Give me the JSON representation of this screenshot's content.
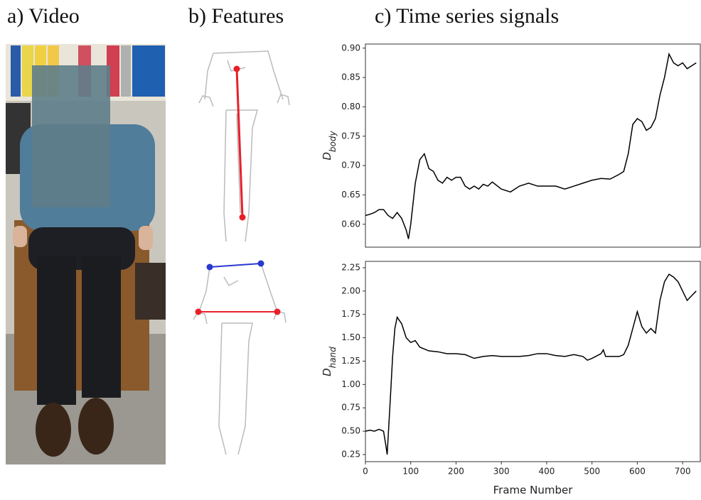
{
  "panels": {
    "a": "a) Video",
    "b": "b) Features",
    "c": "c) Time series signals"
  },
  "chart_data": [
    {
      "type": "line",
      "ylabel": "D",
      "ylabel_sub": "body",
      "color": "#000000",
      "xlim": [
        0,
        739
      ],
      "ylim": [
        0.561,
        0.907
      ],
      "yticks": [
        {
          "value": 0.6,
          "label": "0.60"
        },
        0.65,
        {
          "value": 0.7,
          "label": "0.70"
        },
        0.75,
        {
          "value": 0.8,
          "label": "0.80"
        },
        0.85,
        {
          "value": 0.9,
          "label": "0.90"
        }
      ],
      "x": [
        0,
        10,
        20,
        30,
        40,
        50,
        60,
        70,
        80,
        90,
        95,
        100,
        110,
        120,
        130,
        140,
        150,
        160,
        170,
        180,
        190,
        200,
        210,
        220,
        230,
        240,
        250,
        260,
        270,
        280,
        300,
        320,
        340,
        360,
        380,
        400,
        420,
        440,
        460,
        480,
        500,
        520,
        540,
        560,
        570,
        580,
        590,
        600,
        610,
        620,
        630,
        640,
        650,
        660,
        670,
        680,
        690,
        700,
        710,
        720,
        730
      ],
      "values": [
        0.615,
        0.617,
        0.62,
        0.625,
        0.625,
        0.615,
        0.61,
        0.62,
        0.61,
        0.59,
        0.575,
        0.6,
        0.67,
        0.71,
        0.72,
        0.695,
        0.69,
        0.675,
        0.67,
        0.68,
        0.675,
        0.68,
        0.68,
        0.665,
        0.66,
        0.665,
        0.66,
        0.668,
        0.665,
        0.672,
        0.66,
        0.655,
        0.665,
        0.67,
        0.665,
        0.665,
        0.665,
        0.66,
        0.665,
        0.67,
        0.675,
        0.678,
        0.677,
        0.685,
        0.69,
        0.72,
        0.77,
        0.78,
        0.775,
        0.76,
        0.765,
        0.78,
        0.82,
        0.85,
        0.89,
        0.875,
        0.87,
        0.875,
        0.865,
        0.87,
        0.875
      ]
    },
    {
      "type": "line",
      "ylabel": "D",
      "ylabel_sub": "hand",
      "xlabel": "Frame Number",
      "color": "#000000",
      "xlim": [
        0,
        739
      ],
      "ylim": [
        0.174,
        2.318
      ],
      "xticks": [
        0,
        100,
        200,
        300,
        400,
        500,
        600,
        700
      ],
      "yticks": [
        0.25,
        {
          "value": 0.5,
          "label": "0.50"
        },
        0.75,
        {
          "value": 1,
          "label": "1.00"
        },
        1.25,
        {
          "value": 1.5,
          "label": "1.50"
        },
        1.75,
        {
          "value": 2,
          "label": "2.00"
        },
        2.25
      ],
      "x": [
        0,
        10,
        20,
        30,
        40,
        45,
        48,
        55,
        60,
        65,
        70,
        80,
        90,
        100,
        110,
        120,
        140,
        160,
        180,
        200,
        220,
        240,
        260,
        280,
        300,
        320,
        340,
        360,
        380,
        400,
        420,
        440,
        460,
        480,
        490,
        500,
        520,
        525,
        530,
        560,
        570,
        580,
        590,
        600,
        610,
        620,
        630,
        640,
        650,
        660,
        670,
        680,
        690,
        700,
        710,
        720,
        730
      ],
      "values": [
        0.5,
        0.51,
        0.5,
        0.52,
        0.5,
        0.35,
        0.25,
        0.85,
        1.3,
        1.6,
        1.72,
        1.65,
        1.5,
        1.45,
        1.47,
        1.4,
        1.36,
        1.35,
        1.33,
        1.33,
        1.32,
        1.28,
        1.3,
        1.31,
        1.3,
        1.3,
        1.3,
        1.31,
        1.33,
        1.33,
        1.31,
        1.3,
        1.32,
        1.3,
        1.26,
        1.28,
        1.33,
        1.37,
        1.3,
        1.3,
        1.32,
        1.42,
        1.6,
        1.78,
        1.62,
        1.55,
        1.6,
        1.55,
        1.9,
        2.1,
        2.18,
        2.15,
        2.1,
        2.0,
        1.9,
        1.95,
        2.0
      ]
    }
  ]
}
